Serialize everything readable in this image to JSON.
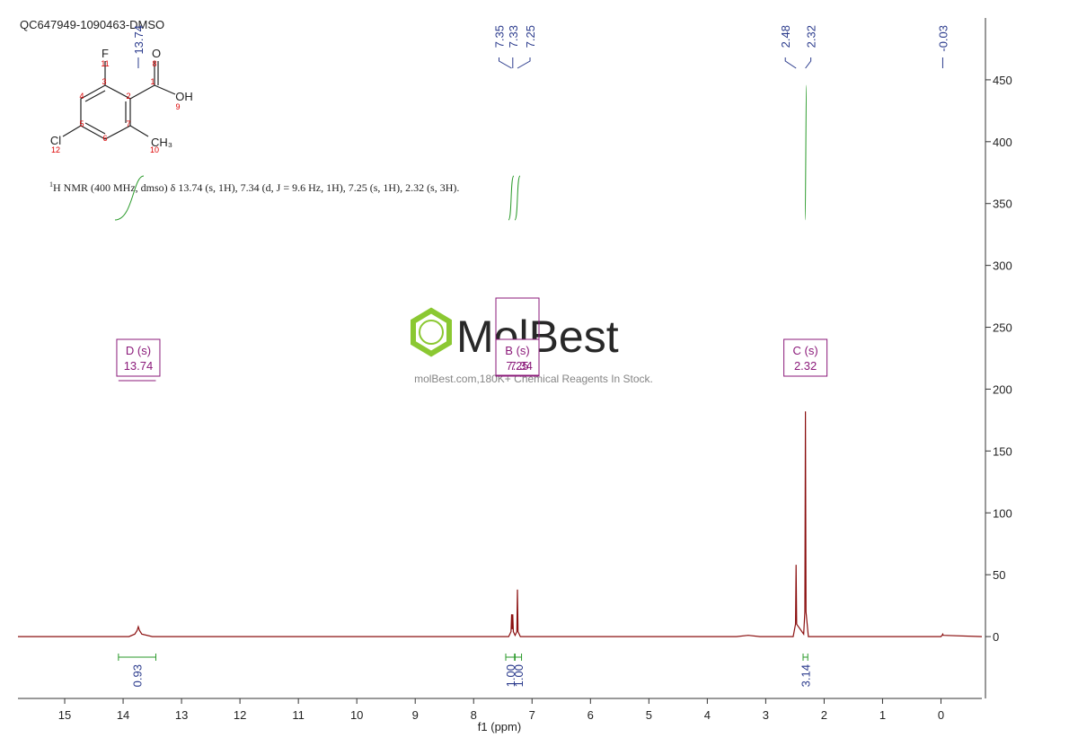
{
  "header": {
    "title": "QC647949-1090463-DMSO",
    "description_sup": "1",
    "description": "H NMR (400 MHz, dmso) δ 13.74 (s, 1H), 7.34 (d, J = 9.6 Hz, 1H), 7.25 (s, 1H), 2.32 (s, 3H).",
    "watermark": "MolBest",
    "watermark_sub": "molBest.com,180K+ Chemical Reagents In Stock."
  },
  "molecule": {
    "atoms": [
      "F",
      "O",
      "OH",
      "Cl",
      "CH₃"
    ],
    "numbers": [
      "1",
      "2",
      "3",
      "4",
      "5",
      "6",
      "7",
      "8",
      "9",
      "10",
      "11",
      "12"
    ]
  },
  "chart_data": {
    "type": "line",
    "xlabel": "f1 (ppm)",
    "color": "#8b1010",
    "xlim": [
      15.8,
      -0.7
    ],
    "xticks": [
      15,
      14,
      13,
      12,
      11,
      10,
      9,
      8,
      7,
      6,
      5,
      4,
      3,
      2,
      1,
      0
    ],
    "ylim": [
      -50,
      500
    ],
    "yticks": [
      0,
      50,
      100,
      150,
      200,
      250,
      300,
      350,
      400,
      450
    ],
    "x": [
      15.8,
      13.9,
      13.8,
      13.76,
      13.74,
      13.72,
      13.68,
      13.5,
      7.4,
      7.36,
      7.35,
      7.34,
      7.33,
      7.32,
      7.29,
      7.26,
      7.25,
      7.24,
      7.2,
      3.5,
      3.3,
      3.1,
      2.53,
      2.49,
      2.48,
      2.47,
      2.35,
      2.33,
      2.32,
      2.31,
      2.27,
      0.0,
      -0.02,
      -0.03,
      -0.04,
      -0.7
    ],
    "values": [
      0,
      0,
      2,
      5,
      8,
      5,
      2,
      0,
      0,
      4,
      18,
      6,
      18,
      4,
      1,
      4,
      38,
      4,
      0,
      0,
      1,
      0,
      0,
      10,
      58,
      10,
      2,
      20,
      182,
      20,
      0,
      0,
      1,
      2,
      1,
      0
    ],
    "peak_labels": [
      13.74,
      7.35,
      7.33,
      7.25,
      2.48,
      2.32,
      -0.03
    ],
    "multiplets": [
      {
        "label": "D (s)",
        "shift": 13.74
      },
      {
        "label": "B (s)",
        "shift": 7.25
      },
      {
        "label": "C (s)",
        "shift": 2.32
      }
    ],
    "extra_shift": 7.34,
    "integrals": [
      {
        "from": 14.08,
        "to": 13.44,
        "value": 0.93,
        "label": "0.93"
      },
      {
        "from": 7.45,
        "to": 7.3,
        "value": 1,
        "label": "1.00"
      },
      {
        "from": 7.29,
        "to": 7.18,
        "value": 1,
        "label": "1.00"
      },
      {
        "from": 2.36,
        "to": 2.28,
        "value": 3.14,
        "label": "3.14"
      }
    ]
  }
}
